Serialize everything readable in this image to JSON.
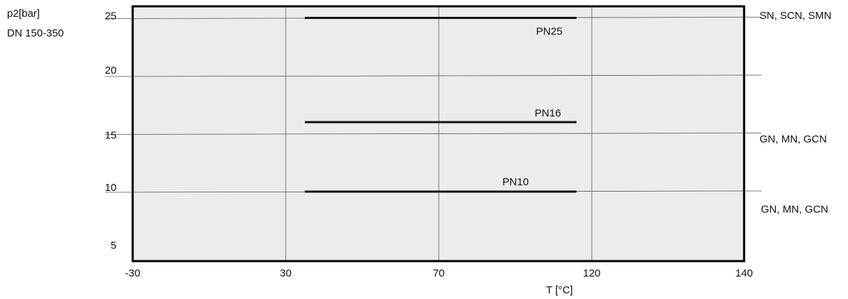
{
  "chart_data": {
    "type": "line",
    "title": "",
    "ylabel": "p2[bar]",
    "subtitle": "DN 150-350",
    "xlabel": "T [°C]",
    "x_ticks": [
      "-30",
      "30",
      "70",
      "120",
      "140"
    ],
    "y_ticks": [
      5,
      10,
      15,
      20,
      25
    ],
    "ylim": [
      4,
      26
    ],
    "grid": true,
    "series": [
      {
        "name": "PN25",
        "x_start": 35,
        "x_end": 115,
        "y": 25
      },
      {
        "name": "PN16",
        "x_start": 35,
        "x_end": 115,
        "y": 16
      },
      {
        "name": "PN10",
        "x_start": 35,
        "x_end": 115,
        "y": 10
      }
    ],
    "right_labels": [
      {
        "text": "SN, SCN, SMN",
        "y": 25
      },
      {
        "text": "GN, MN, GCN",
        "y": 15
      },
      {
        "text": "GN, MN, GCN",
        "y": 10
      }
    ]
  }
}
